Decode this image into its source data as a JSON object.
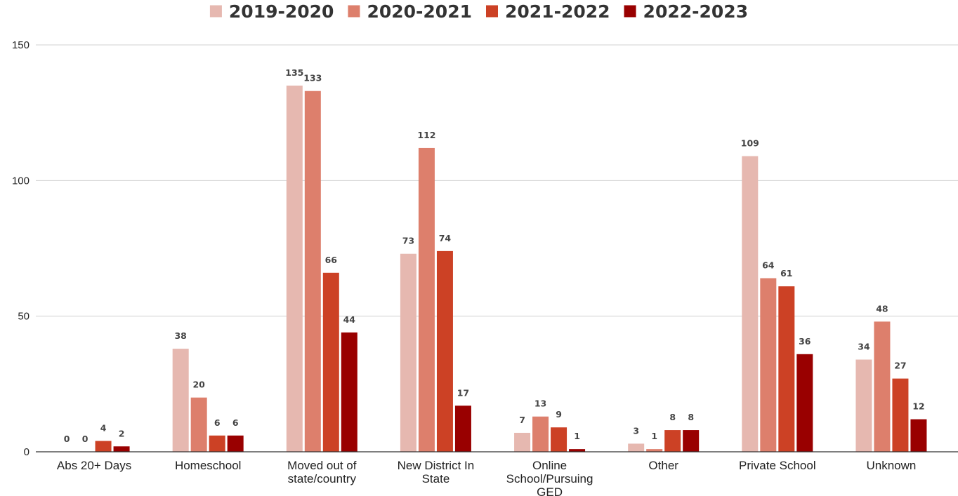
{
  "chart_data": {
    "type": "bar",
    "title": "",
    "xlabel": "",
    "ylabel": "",
    "ylim": [
      0,
      150
    ],
    "yticks": [
      0,
      50,
      100,
      150
    ],
    "grid": true,
    "legend_position": "top-center",
    "categories": [
      [
        "Abs 20+ Days"
      ],
      [
        "Homeschool"
      ],
      [
        "Moved out of",
        "state/country"
      ],
      [
        "New District In",
        "State"
      ],
      [
        "Online",
        "School/Pursuing",
        "GED"
      ],
      [
        "Other"
      ],
      [
        "Private School"
      ],
      [
        "Unknown"
      ]
    ],
    "series": [
      {
        "name": "2019-2020",
        "color": "#e6b8b0",
        "values": [
          0,
          38,
          135,
          73,
          7,
          3,
          109,
          34
        ]
      },
      {
        "name": "2020-2021",
        "color": "#dd7f6c",
        "values": [
          0,
          20,
          133,
          112,
          13,
          1,
          64,
          48
        ]
      },
      {
        "name": "2021-2022",
        "color": "#cc4125",
        "values": [
          4,
          6,
          66,
          74,
          9,
          8,
          61,
          27
        ]
      },
      {
        "name": "2022-2023",
        "color": "#990000",
        "values": [
          2,
          6,
          44,
          17,
          1,
          8,
          36,
          12
        ]
      }
    ]
  }
}
